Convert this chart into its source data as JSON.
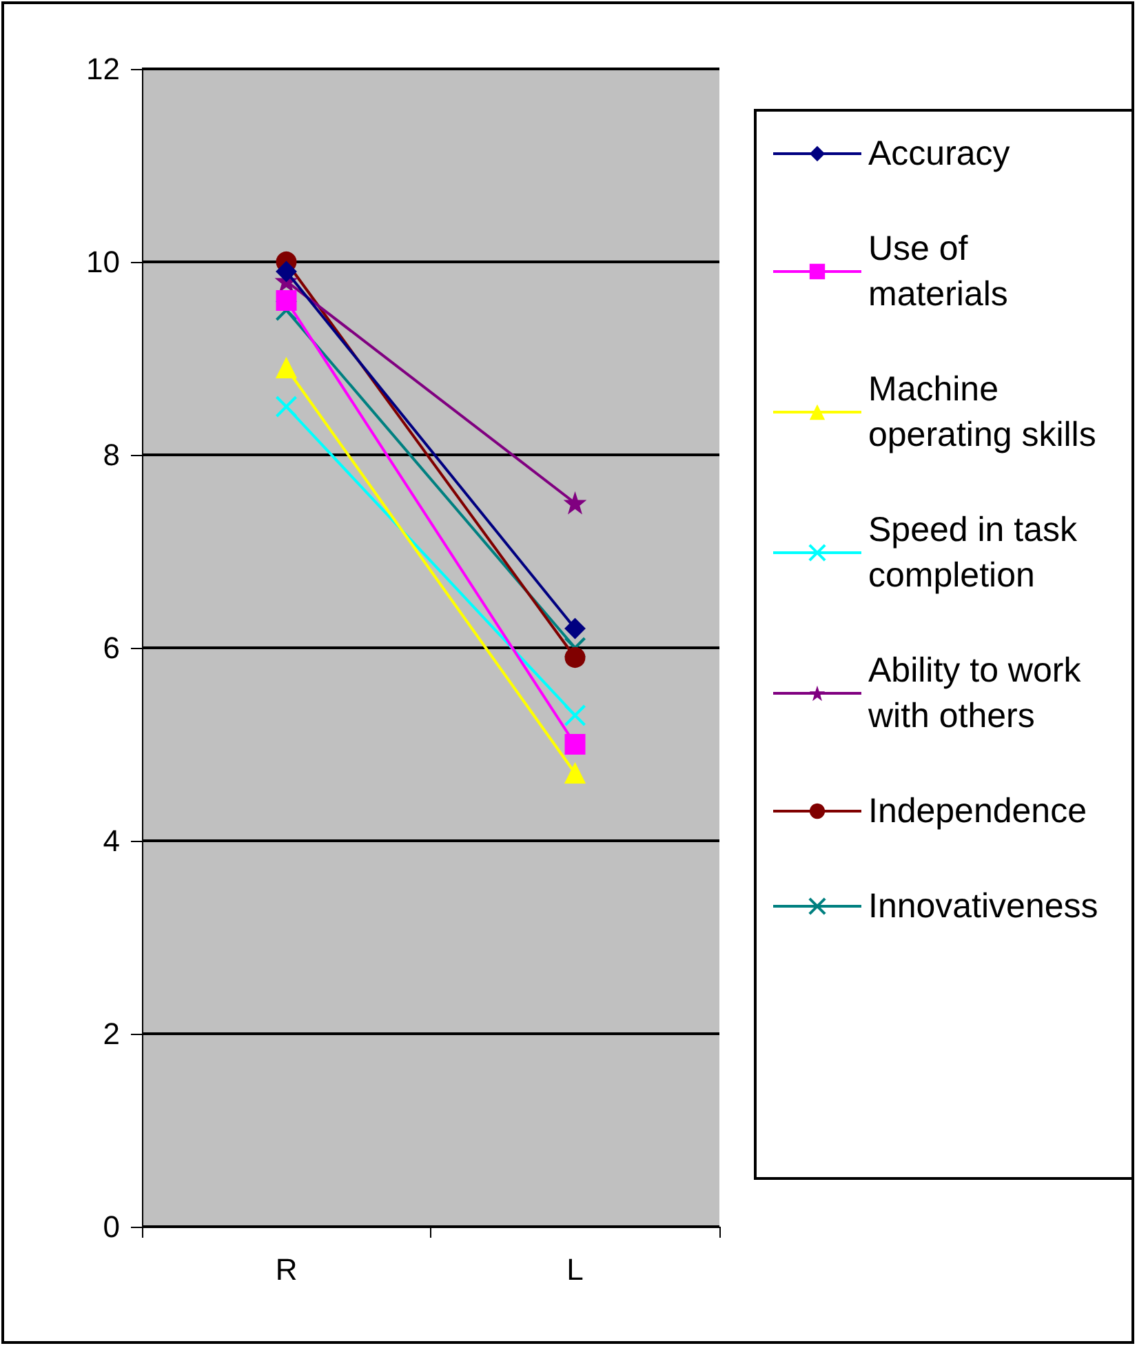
{
  "chart_data": {
    "type": "line",
    "categories": [
      "R",
      "L"
    ],
    "ylim": [
      0,
      12
    ],
    "yticks": [
      0,
      2,
      4,
      6,
      8,
      10,
      12
    ],
    "grid": "y",
    "legend": "right",
    "series": [
      {
        "name": "Accuracy",
        "color": "#000080",
        "marker": "diamond",
        "values": [
          9.9,
          6.2
        ]
      },
      {
        "name": "Use of materials",
        "color": "#ff00ff",
        "marker": "square",
        "values": [
          9.6,
          5.0
        ]
      },
      {
        "name": "Machine operating skills",
        "color": "#ffff00",
        "marker": "triangle",
        "values": [
          8.9,
          4.7
        ]
      },
      {
        "name": "Speed in task completion",
        "color": "#00ffff",
        "marker": "cross",
        "values": [
          8.5,
          5.3
        ]
      },
      {
        "name": "Ability to work with others",
        "color": "#800080",
        "marker": "star",
        "values": [
          9.8,
          7.5
        ]
      },
      {
        "name": "Independence",
        "color": "#800000",
        "marker": "circle",
        "values": [
          10.0,
          5.9
        ]
      },
      {
        "name": "Innovativeness",
        "color": "#008080",
        "marker": "cross",
        "values": [
          9.5,
          6.0
        ]
      }
    ]
  }
}
